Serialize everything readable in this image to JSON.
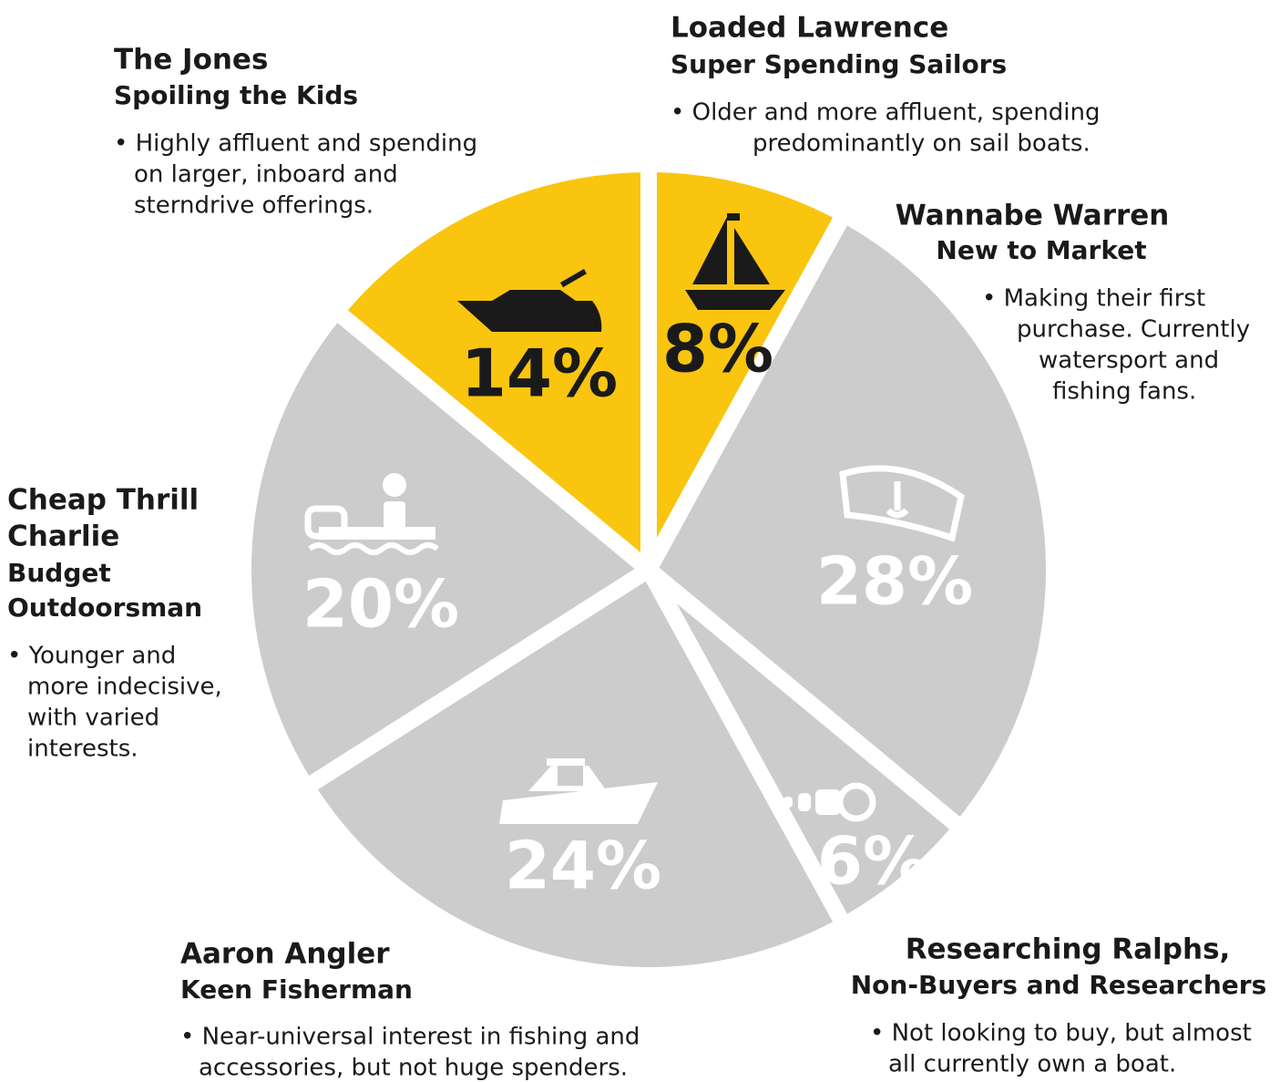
{
  "chart_data": {
    "type": "pie",
    "values": [
      8,
      28,
      6,
      24,
      20,
      14
    ],
    "value_labels": [
      "8%",
      "28%",
      "6%",
      "24%",
      "20%",
      "14%"
    ],
    "colors": [
      "#f9c50f",
      "#cccccc",
      "#cccccc",
      "#cccccc",
      "#cccccc",
      "#f9c50f"
    ],
    "segment_texts": [
      {
        "title": [
          "Loaded Lawrence"
        ],
        "subtitle": [
          "Super Spending Sailors"
        ],
        "description": [
          "• Older and more affluent, spending",
          "predominantly on sail boats."
        ]
      },
      {
        "title": [
          "Wannabe Warren"
        ],
        "subtitle": [
          "New to Market"
        ],
        "description": [
          "• Making their first",
          "purchase. Currently",
          "watersport and",
          "fishing fans."
        ]
      },
      {
        "title": [
          "Researching Ralphs,"
        ],
        "subtitle": [
          "Non-Buyers and Researchers"
        ],
        "description": [
          "• Not looking to buy, but almost",
          "all currently own a boat."
        ]
      },
      {
        "title": [
          "Aaron Angler"
        ],
        "subtitle": [
          "Keen Fisherman"
        ],
        "description": [
          "• Near-universal interest in fishing and",
          "accessories, but not huge spenders."
        ]
      },
      {
        "title": [
          "Cheap Thrill",
          "Charlie"
        ],
        "subtitle": [
          "Budget",
          "Outdoorsman"
        ],
        "description": [
          "• Younger and",
          "more indecisive,",
          "with varied",
          "interests."
        ]
      },
      {
        "title": [
          "The Jones"
        ],
        "subtitle": [
          "Spoiling the Kids"
        ],
        "description": [
          "• Highly affluent and spending",
          "on larger, inboard and",
          "sterndrive offerings."
        ]
      }
    ]
  }
}
